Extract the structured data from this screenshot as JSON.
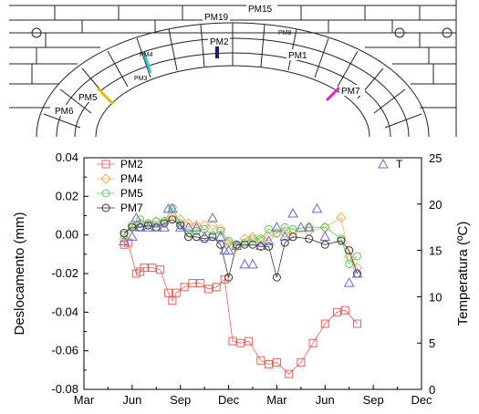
{
  "drawing": {
    "labels": [
      "PM19",
      "PM15",
      "PM2",
      "PM8",
      "PM1",
      "PM5",
      "PM6",
      "PM7",
      "PM4",
      "PM3"
    ],
    "marker_colors": {
      "PM2": "#1a1a6e",
      "PM4": "#3cc8c8",
      "PM5": "#f5b400",
      "PM7": "#e020c8"
    }
  },
  "chart_data": {
    "type": "scatter",
    "title": "",
    "xlabel": "",
    "ylabel": "Deslocamento (mm)",
    "y2label": "Temperatura (ºC)",
    "x_ticks": [
      "Mar",
      "Jun",
      "Sep",
      "Dec",
      "Mar",
      "Jun",
      "Sep",
      "Dec"
    ],
    "xlim": [
      0,
      21
    ],
    "ylim": [
      -0.08,
      0.04
    ],
    "y_ticks": [
      "0.04",
      "0.02",
      "0.00",
      "-0.02",
      "-0.04",
      "-0.06",
      "-0.08"
    ],
    "y2lim": [
      0,
      25
    ],
    "y2_ticks": [
      "25",
      "20",
      "15",
      "10",
      "5",
      "0"
    ],
    "grid": false,
    "legend_placement": "top-left",
    "series": [
      {
        "name": "PM2",
        "axis": "left",
        "color": "#e8605a",
        "marker": "square",
        "points": [
          [
            2.5,
            -0.005
          ],
          [
            2.75,
            -0.004
          ],
          [
            3.25,
            -0.02
          ],
          [
            3.5,
            -0.019
          ],
          [
            3.75,
            -0.017
          ],
          [
            4.25,
            -0.017
          ],
          [
            4.75,
            -0.018
          ],
          [
            5.25,
            -0.03
          ],
          [
            5.5,
            -0.034
          ],
          [
            5.75,
            -0.03
          ],
          [
            6.25,
            -0.027
          ],
          [
            6.75,
            -0.025
          ],
          [
            7.25,
            -0.025
          ],
          [
            7.75,
            -0.028
          ],
          [
            8.25,
            -0.027
          ],
          [
            8.75,
            -0.023
          ],
          [
            9.25,
            -0.055
          ],
          [
            9.75,
            -0.056
          ],
          [
            10.25,
            -0.055
          ],
          [
            11.0,
            -0.065
          ],
          [
            11.5,
            -0.067
          ],
          [
            12.0,
            -0.066
          ],
          [
            12.75,
            -0.072
          ],
          [
            13.5,
            -0.066
          ],
          [
            14.25,
            -0.056
          ],
          [
            15.0,
            -0.046
          ],
          [
            15.75,
            -0.04
          ],
          [
            16.25,
            -0.039
          ],
          [
            17.0,
            -0.046
          ]
        ]
      },
      {
        "name": "PM4",
        "axis": "left",
        "color": "#f5b060",
        "marker": "diamond",
        "points": [
          [
            2.5,
            -0.002
          ],
          [
            3.0,
            0.005
          ],
          [
            3.5,
            0.006
          ],
          [
            4.0,
            0.006
          ],
          [
            4.5,
            0.007
          ],
          [
            5.0,
            0.007
          ],
          [
            5.5,
            0.009
          ],
          [
            6.0,
            0.008
          ],
          [
            6.5,
            0.006
          ],
          [
            7.0,
            0.005
          ],
          [
            7.5,
            0.005
          ],
          [
            8.0,
            0.005
          ],
          [
            8.5,
            0.003
          ],
          [
            9.0,
            -0.004
          ],
          [
            9.5,
            -0.006
          ],
          [
            10.0,
            -0.002
          ],
          [
            10.5,
            -0.001
          ],
          [
            11.0,
            -0.003
          ],
          [
            11.5,
            -0.001
          ],
          [
            12.0,
            0.001
          ],
          [
            12.5,
            0.001
          ],
          [
            13.0,
            0.001
          ],
          [
            14.0,
            0.002
          ],
          [
            15.0,
            0.004
          ],
          [
            16.0,
            0.009
          ],
          [
            16.5,
            -0.011
          ],
          [
            17.0,
            -0.017
          ]
        ]
      },
      {
        "name": "PM5",
        "axis": "left",
        "color": "#60c860",
        "marker": "circle",
        "points": [
          [
            2.5,
            0.0
          ],
          [
            3.0,
            0.005
          ],
          [
            3.5,
            0.008
          ],
          [
            4.0,
            0.006
          ],
          [
            4.5,
            0.007
          ],
          [
            5.0,
            0.007
          ],
          [
            5.5,
            0.014
          ],
          [
            6.0,
            0.006
          ],
          [
            6.5,
            0.001
          ],
          [
            7.0,
            0.002
          ],
          [
            7.5,
            0.003
          ],
          [
            8.0,
            0.0
          ],
          [
            8.5,
            0.002
          ],
          [
            9.0,
            -0.003
          ],
          [
            9.5,
            -0.005
          ],
          [
            10.0,
            -0.004
          ],
          [
            10.5,
            -0.002
          ],
          [
            11.0,
            -0.002
          ],
          [
            11.5,
            0.003
          ],
          [
            12.0,
            0.001
          ],
          [
            12.5,
            0.004
          ],
          [
            13.0,
            0.003
          ],
          [
            14.0,
            0.004
          ],
          [
            15.0,
            0.004
          ],
          [
            16.0,
            -0.002
          ],
          [
            16.5,
            -0.015
          ],
          [
            17.0,
            -0.011
          ]
        ]
      },
      {
        "name": "PM7",
        "axis": "left",
        "color": "#333333",
        "marker": "circle",
        "points": [
          [
            2.5,
            0.001
          ],
          [
            3.0,
            0.004
          ],
          [
            3.5,
            0.004
          ],
          [
            4.0,
            0.005
          ],
          [
            4.5,
            0.004
          ],
          [
            5.0,
            0.006
          ],
          [
            5.5,
            0.008
          ],
          [
            6.0,
            0.005
          ],
          [
            6.5,
            -0.001
          ],
          [
            7.0,
            -0.001
          ],
          [
            7.5,
            -0.002
          ],
          [
            8.0,
            -0.001
          ],
          [
            8.5,
            -0.005
          ],
          [
            9.0,
            -0.022
          ],
          [
            9.5,
            -0.005
          ],
          [
            10.0,
            -0.005
          ],
          [
            10.5,
            -0.005
          ],
          [
            11.0,
            -0.006
          ],
          [
            11.5,
            -0.006
          ],
          [
            12.0,
            -0.022
          ],
          [
            12.5,
            -0.004
          ],
          [
            13.0,
            -0.001
          ],
          [
            14.0,
            -0.002
          ],
          [
            15.0,
            -0.005
          ],
          [
            16.0,
            -0.003
          ],
          [
            16.5,
            -0.008
          ],
          [
            17.0,
            -0.02
          ]
        ]
      },
      {
        "name": "T",
        "axis": "right",
        "color": "#6a6acc",
        "marker": "triangle",
        "points": [
          [
            2.5,
            16.0
          ],
          [
            3.0,
            16.5
          ],
          [
            3.25,
            18.5
          ],
          [
            3.5,
            17.5
          ],
          [
            4.0,
            17.5
          ],
          [
            4.5,
            17.5
          ],
          [
            5.0,
            17.5
          ],
          [
            5.25,
            19.5
          ],
          [
            5.5,
            19.5
          ],
          [
            6.0,
            17.5
          ],
          [
            6.5,
            17.5
          ],
          [
            7.0,
            17.5
          ],
          [
            7.5,
            16.5
          ],
          [
            8.0,
            18.5
          ],
          [
            8.5,
            16.5
          ],
          [
            8.75,
            15.0
          ],
          [
            9.0,
            15.0
          ],
          [
            9.5,
            15.5
          ],
          [
            10.0,
            13.5
          ],
          [
            10.5,
            13.5
          ],
          [
            11.0,
            15.5
          ],
          [
            11.5,
            16.0
          ],
          [
            12.0,
            17.5
          ],
          [
            12.5,
            16.5
          ],
          [
            13.0,
            19.0
          ],
          [
            13.5,
            17.5
          ],
          [
            14.0,
            17.5
          ],
          [
            14.5,
            19.5
          ],
          [
            15.0,
            16.5
          ],
          [
            16.5,
            11.5
          ],
          [
            17.0,
            12.5
          ]
        ]
      }
    ]
  }
}
